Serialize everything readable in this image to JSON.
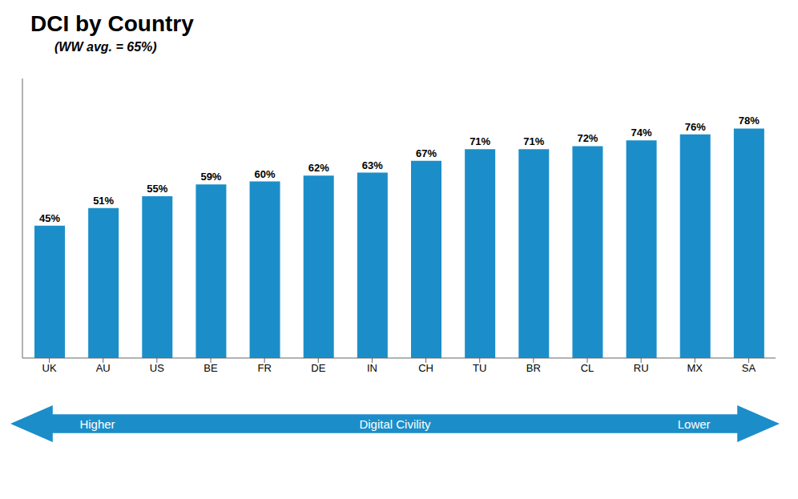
{
  "chart_data": {
    "type": "bar",
    "title": "DCI by Country",
    "subtitle": "(WW avg. = 65%)",
    "categories": [
      "UK",
      "AU",
      "US",
      "BE",
      "FR",
      "DE",
      "IN",
      "CH",
      "TU",
      "BR",
      "CL",
      "RU",
      "MX",
      "SA"
    ],
    "values": [
      45,
      51,
      55,
      59,
      60,
      62,
      63,
      67,
      71,
      71,
      72,
      74,
      76,
      78
    ],
    "value_labels": [
      "45%",
      "51%",
      "55%",
      "59%",
      "60%",
      "62%",
      "63%",
      "67%",
      "71%",
      "71%",
      "72%",
      "74%",
      "76%",
      "78%"
    ],
    "data_labels": true,
    "color": "#1b8ec9",
    "ylim": [
      0,
      95
    ],
    "tick_labels": "x",
    "grid": false,
    "annotations": [
      "Higher",
      "Digital Civility",
      "Lower"
    ]
  }
}
